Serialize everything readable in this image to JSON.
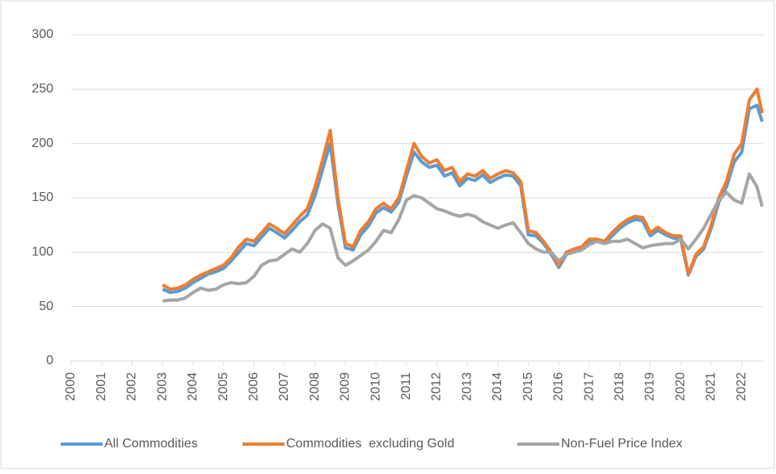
{
  "chart_data": {
    "type": "line",
    "x": [
      2003.0,
      2003.25,
      2003.5,
      2003.75,
      2004.0,
      2004.25,
      2004.5,
      2004.75,
      2005.0,
      2005.25,
      2005.5,
      2005.75,
      2006.0,
      2006.25,
      2006.5,
      2006.75,
      2007.0,
      2007.25,
      2007.5,
      2007.75,
      2008.0,
      2008.25,
      2008.5,
      2008.75,
      2009.0,
      2009.25,
      2009.5,
      2009.75,
      2010.0,
      2010.25,
      2010.5,
      2010.75,
      2011.0,
      2011.25,
      2011.5,
      2011.75,
      2012.0,
      2012.25,
      2012.5,
      2012.75,
      2013.0,
      2013.25,
      2013.5,
      2013.75,
      2014.0,
      2014.25,
      2014.5,
      2014.75,
      2015.0,
      2015.25,
      2015.5,
      2015.75,
      2016.0,
      2016.25,
      2016.5,
      2016.75,
      2017.0,
      2017.25,
      2017.5,
      2017.75,
      2018.0,
      2018.25,
      2018.5,
      2018.75,
      2019.0,
      2019.25,
      2019.5,
      2019.75,
      2020.0,
      2020.25,
      2020.5,
      2020.75,
      2021.0,
      2021.25,
      2021.5,
      2021.75,
      2022.0,
      2022.25,
      2022.5,
      2022.67
    ],
    "series": [
      {
        "name": "All Commodities",
        "color": "#5b9bd5",
        "values": [
          66,
          63,
          64,
          67,
          72,
          76,
          80,
          82,
          85,
          92,
          100,
          108,
          106,
          114,
          122,
          118,
          113,
          120,
          128,
          134,
          152,
          176,
          200,
          145,
          104,
          102,
          116,
          124,
          136,
          141,
          137,
          146,
          170,
          192,
          183,
          178,
          180,
          170,
          173,
          161,
          168,
          166,
          171,
          164,
          168,
          171,
          170,
          161,
          116,
          115,
          108,
          98,
          86,
          98,
          101,
          103,
          109,
          110,
          108,
          115,
          122,
          127,
          130,
          129,
          115,
          120,
          116,
          113,
          112,
          79,
          96,
          103,
          122,
          146,
          160,
          183,
          192,
          232,
          235,
          220
        ]
      },
      {
        "name": "Commodities  excluding Gold",
        "color": "#ed7d31",
        "values": [
          70,
          66,
          67,
          70,
          75,
          79,
          82,
          85,
          88,
          95,
          105,
          112,
          110,
          118,
          126,
          122,
          117,
          125,
          133,
          140,
          160,
          185,
          212,
          150,
          108,
          105,
          120,
          128,
          140,
          145,
          140,
          150,
          175,
          200,
          188,
          182,
          185,
          175,
          178,
          165,
          172,
          170,
          175,
          168,
          172,
          175,
          173,
          165,
          120,
          118,
          110,
          100,
          88,
          100,
          103,
          105,
          112,
          112,
          110,
          118,
          125,
          130,
          133,
          132,
          118,
          123,
          118,
          115,
          115,
          80,
          98,
          105,
          125,
          150,
          165,
          190,
          200,
          240,
          250,
          228
        ]
      },
      {
        "name": "Non-Fuel Price Index",
        "color": "#a5a5a5",
        "values": [
          55,
          56,
          56,
          58,
          63,
          67,
          65,
          66,
          70,
          72,
          71,
          72,
          78,
          88,
          92,
          93,
          98,
          103,
          100,
          108,
          120,
          126,
          122,
          95,
          88,
          92,
          97,
          102,
          110,
          120,
          118,
          130,
          148,
          152,
          150,
          145,
          140,
          138,
          135,
          133,
          135,
          133,
          128,
          125,
          122,
          125,
          127,
          118,
          108,
          103,
          100,
          100,
          92,
          98,
          100,
          102,
          107,
          110,
          108,
          110,
          110,
          112,
          108,
          104,
          106,
          107,
          108,
          108,
          112,
          103,
          112,
          122,
          135,
          148,
          155,
          148,
          145,
          172,
          160,
          142
        ]
      }
    ],
    "xlim": [
      2000,
      2022.7
    ],
    "xticks": [
      2000,
      2001,
      2002,
      2003,
      2004,
      2005,
      2006,
      2007,
      2008,
      2009,
      2010,
      2011,
      2012,
      2013,
      2014,
      2015,
      2016,
      2017,
      2018,
      2019,
      2020,
      2021,
      2022
    ],
    "ylim": [
      0,
      300
    ],
    "yticks": [
      0,
      50,
      100,
      150,
      200,
      250,
      300
    ],
    "grid": true,
    "legend": "bottom"
  }
}
